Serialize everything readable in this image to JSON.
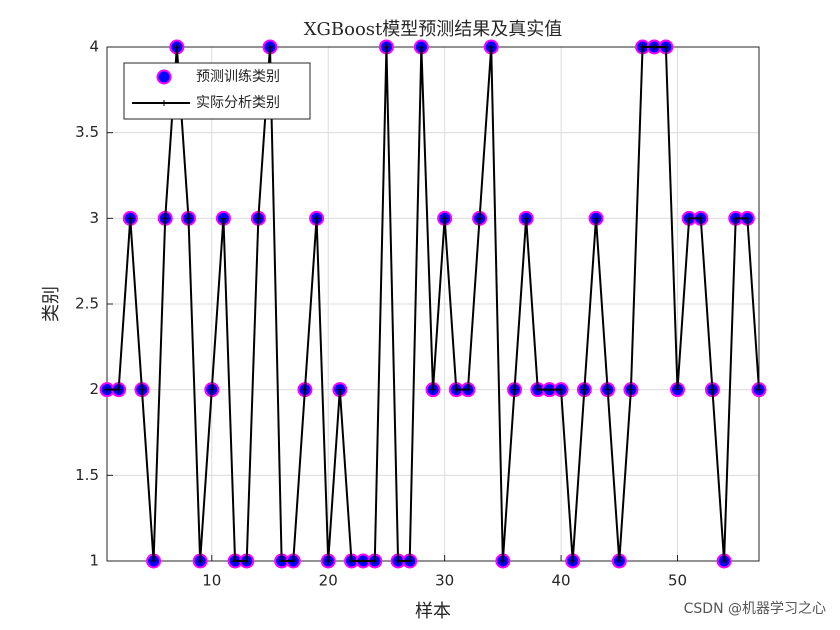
{
  "chart_data": {
    "type": "line",
    "title": "XGBoost模型预测结果及真实值",
    "x_label": "样本",
    "y_label": "类别",
    "x": [
      1,
      2,
      3,
      4,
      5,
      6,
      7,
      8,
      9,
      10,
      11,
      12,
      13,
      14,
      15,
      16,
      17,
      18,
      19,
      20,
      21,
      22,
      23,
      24,
      25,
      26,
      27,
      28,
      29,
      30,
      31,
      32,
      33,
      34,
      35,
      36,
      37,
      38,
      39,
      40,
      41,
      42,
      43,
      44,
      45,
      46,
      47,
      48,
      49,
      50,
      51,
      52,
      53,
      54,
      55,
      56,
      57
    ],
    "series": [
      {
        "name": "预测训练类别",
        "color": "#0000ff",
        "edge_color": "#ff00ff",
        "style": "marker",
        "values": [
          2,
          2,
          3,
          2,
          1,
          3,
          4,
          3,
          1,
          2,
          3,
          1,
          1,
          3,
          4,
          1,
          1,
          2,
          3,
          1,
          2,
          1,
          1,
          1,
          4,
          1,
          1,
          4,
          2,
          3,
          2,
          2,
          3,
          4,
          1,
          2,
          3,
          2,
          2,
          2,
          1,
          2,
          3,
          2,
          1,
          2,
          4,
          4,
          4,
          2,
          3,
          3,
          2,
          1,
          3,
          3,
          2
        ]
      },
      {
        "name": "实际分析类别",
        "color": "#000000",
        "style": "line",
        "values": [
          2,
          2,
          3,
          2,
          1,
          3,
          4,
          3,
          1,
          2,
          3,
          1,
          1,
          3,
          4,
          1,
          1,
          2,
          3,
          1,
          2,
          1,
          1,
          1,
          4,
          1,
          1,
          4,
          2,
          3,
          2,
          2,
          3,
          4,
          1,
          2,
          3,
          2,
          2,
          2,
          1,
          2,
          3,
          2,
          1,
          2,
          4,
          4,
          4,
          2,
          3,
          3,
          2,
          1,
          3,
          3,
          2
        ]
      }
    ],
    "xlim": [
      1,
      57
    ],
    "xticks": [
      10,
      20,
      30,
      40,
      50
    ],
    "ylim": [
      1,
      4
    ],
    "yticks": [
      1,
      1.5,
      2,
      2.5,
      3,
      3.5,
      4
    ],
    "grid": true,
    "legend": "upper-left",
    "watermark": "CSDN @机器学习之心"
  }
}
